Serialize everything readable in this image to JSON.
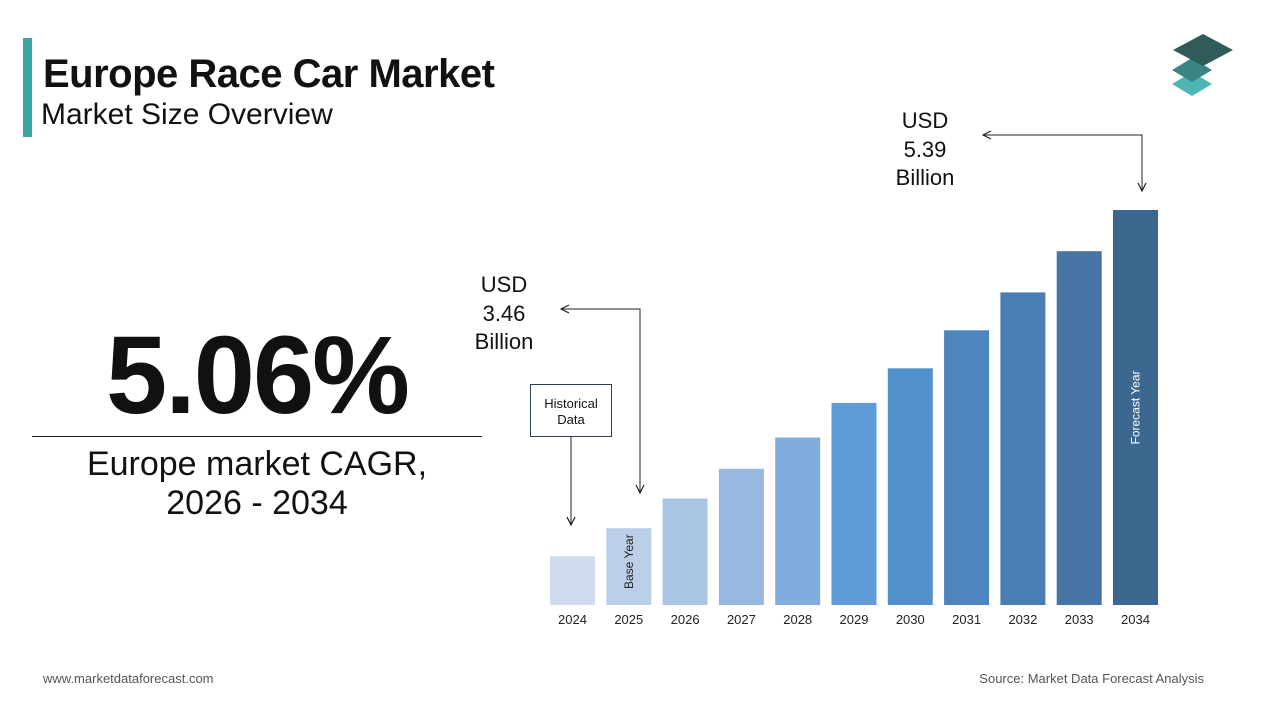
{
  "header": {
    "title": "Europe Race Car Market",
    "subtitle": "Market Size Overview"
  },
  "cagr": {
    "value": "5.06%",
    "label_line1": "Europe market CAGR,",
    "label_line2": "2026 - 2034"
  },
  "callouts": {
    "start": {
      "line1": "USD",
      "line2": "3.46",
      "line3": "Billion"
    },
    "end": {
      "line1": "USD",
      "line2": "5.39",
      "line3": "Billion"
    },
    "historical_line1": "Historical",
    "historical_line2": "Data"
  },
  "chart_data": {
    "type": "bar",
    "categories": [
      "2024",
      "2025",
      "2026",
      "2027",
      "2028",
      "2029",
      "2030",
      "2031",
      "2032",
      "2033",
      "2034"
    ],
    "values": [
      3.29,
      3.46,
      3.64,
      3.82,
      4.01,
      4.22,
      4.43,
      4.66,
      4.89,
      5.14,
      5.39
    ],
    "units": "USD Billion",
    "bar_annotations": [
      {
        "category": "2025",
        "text": "Base Year"
      },
      {
        "category": "2034",
        "text": "Forecast Year"
      }
    ],
    "colors": [
      "#cfdcee",
      "#bccfe8",
      "#aac4e3",
      "#97b8df",
      "#80acde",
      "#5f9bd6",
      "#5290cc",
      "#4d85bc",
      "#4a7eb3",
      "#4574a5",
      "#3c6890"
    ]
  },
  "footer": {
    "website": "www.marketdataforecast.com",
    "source": "Source: Market Data Forecast Analysis"
  },
  "logo": {
    "icon": "layered-stack-icon",
    "colors": [
      "#2f5b59",
      "#3a8583",
      "#4fb7b3"
    ]
  }
}
